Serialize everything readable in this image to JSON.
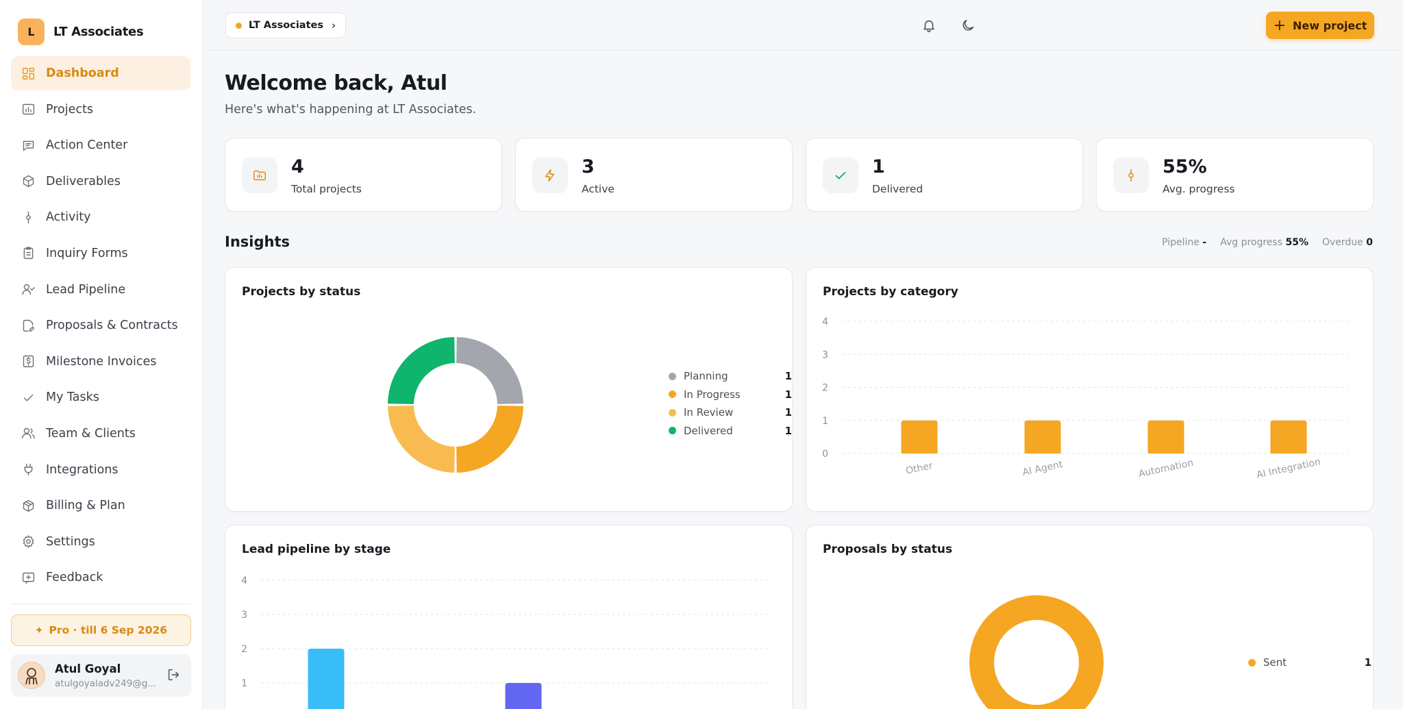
{
  "brand": {
    "initial": "L",
    "name": "LT Associates"
  },
  "nav": [
    {
      "label": "Dashboard",
      "icon": "dashboard-icon",
      "active": true
    },
    {
      "label": "Projects",
      "icon": "chart-folder-icon"
    },
    {
      "label": "Action Center",
      "icon": "message-icon"
    },
    {
      "label": "Deliverables",
      "icon": "package-icon"
    },
    {
      "label": "Activity",
      "icon": "activity-icon"
    },
    {
      "label": "Inquiry Forms",
      "icon": "clipboard-icon"
    },
    {
      "label": "Lead Pipeline",
      "icon": "user-check-icon"
    },
    {
      "label": "Proposals & Contracts",
      "icon": "file-edit-icon"
    },
    {
      "label": "Milestone Invoices",
      "icon": "invoice-icon"
    },
    {
      "label": "My Tasks",
      "icon": "check-icon"
    },
    {
      "label": "Team & Clients",
      "icon": "users-icon"
    },
    {
      "label": "Integrations",
      "icon": "plug-icon"
    },
    {
      "label": "Billing & Plan",
      "icon": "box-icon"
    },
    {
      "label": "Settings",
      "icon": "gear-icon"
    },
    {
      "label": "Feedback",
      "icon": "feedback-icon"
    }
  ],
  "plan": {
    "label": "Pro · till 6 Sep 2026"
  },
  "user": {
    "name": "Atul Goyal",
    "email": "atulgoyaladv249@g..."
  },
  "topbar": {
    "workspace": "LT Associates",
    "new_project_label": "New project"
  },
  "welcome": {
    "title": "Welcome back, Atul",
    "subtitle": "Here's what's happening at LT Associates."
  },
  "stats": [
    {
      "value": "4",
      "label": "Total projects",
      "icon": "folder-chart-icon",
      "color": "#e0901a"
    },
    {
      "value": "3",
      "label": "Active",
      "icon": "lightning-icon",
      "color": "#e0901a"
    },
    {
      "value": "1",
      "label": "Delivered",
      "icon": "check-icon",
      "color": "#12a56b"
    },
    {
      "value": "55%",
      "label": "Avg. progress",
      "icon": "activity-icon",
      "color": "#e0901a"
    }
  ],
  "insights": {
    "title": "Insights",
    "pipeline_label": "Pipeline",
    "pipeline_value": "-",
    "avg_label": "Avg progress",
    "avg_value": "55%",
    "overdue_label": "Overdue",
    "overdue_value": "0"
  },
  "cards": {
    "status": "Projects by status",
    "category": "Projects by category",
    "pipeline": "Lead pipeline by stage",
    "proposals": "Proposals by status"
  },
  "colors": {
    "accent": "#f5a623",
    "planning": "#a3a6ad",
    "in_progress": "#f5a623",
    "in_review": "#f8bb52",
    "delivered": "#0fb46d",
    "pipeline_a": "#38bdf8",
    "pipeline_b": "#6366f1"
  },
  "chart_data": [
    {
      "type": "pie",
      "title": "Projects by status",
      "categories": [
        "Planning",
        "In Progress",
        "In Review",
        "Delivered"
      ],
      "values": [
        1,
        1,
        1,
        1
      ],
      "colors": [
        "#a3a6ad",
        "#f5a623",
        "#f8bb52",
        "#0fb46d"
      ],
      "legend": "right"
    },
    {
      "type": "bar",
      "title": "Projects by category",
      "categories": [
        "Other",
        "AI Agent",
        "Automation",
        "AI Integration"
      ],
      "values": [
        1,
        1,
        1,
        1
      ],
      "ylim": [
        0,
        4
      ],
      "yticks": [
        0,
        1,
        2,
        3,
        4
      ],
      "grid": true
    },
    {
      "type": "bar",
      "title": "Lead pipeline by stage",
      "values": [
        2,
        1
      ],
      "colors": [
        "#38bdf8",
        "#6366f1"
      ],
      "ylim": [
        0,
        4
      ],
      "yticks": [
        1,
        2,
        3,
        4
      ],
      "grid": true
    },
    {
      "type": "pie",
      "title": "Proposals by status",
      "categories": [
        "Sent"
      ],
      "values": [
        1
      ],
      "colors": [
        "#f5a623"
      ],
      "legend": "right"
    }
  ]
}
